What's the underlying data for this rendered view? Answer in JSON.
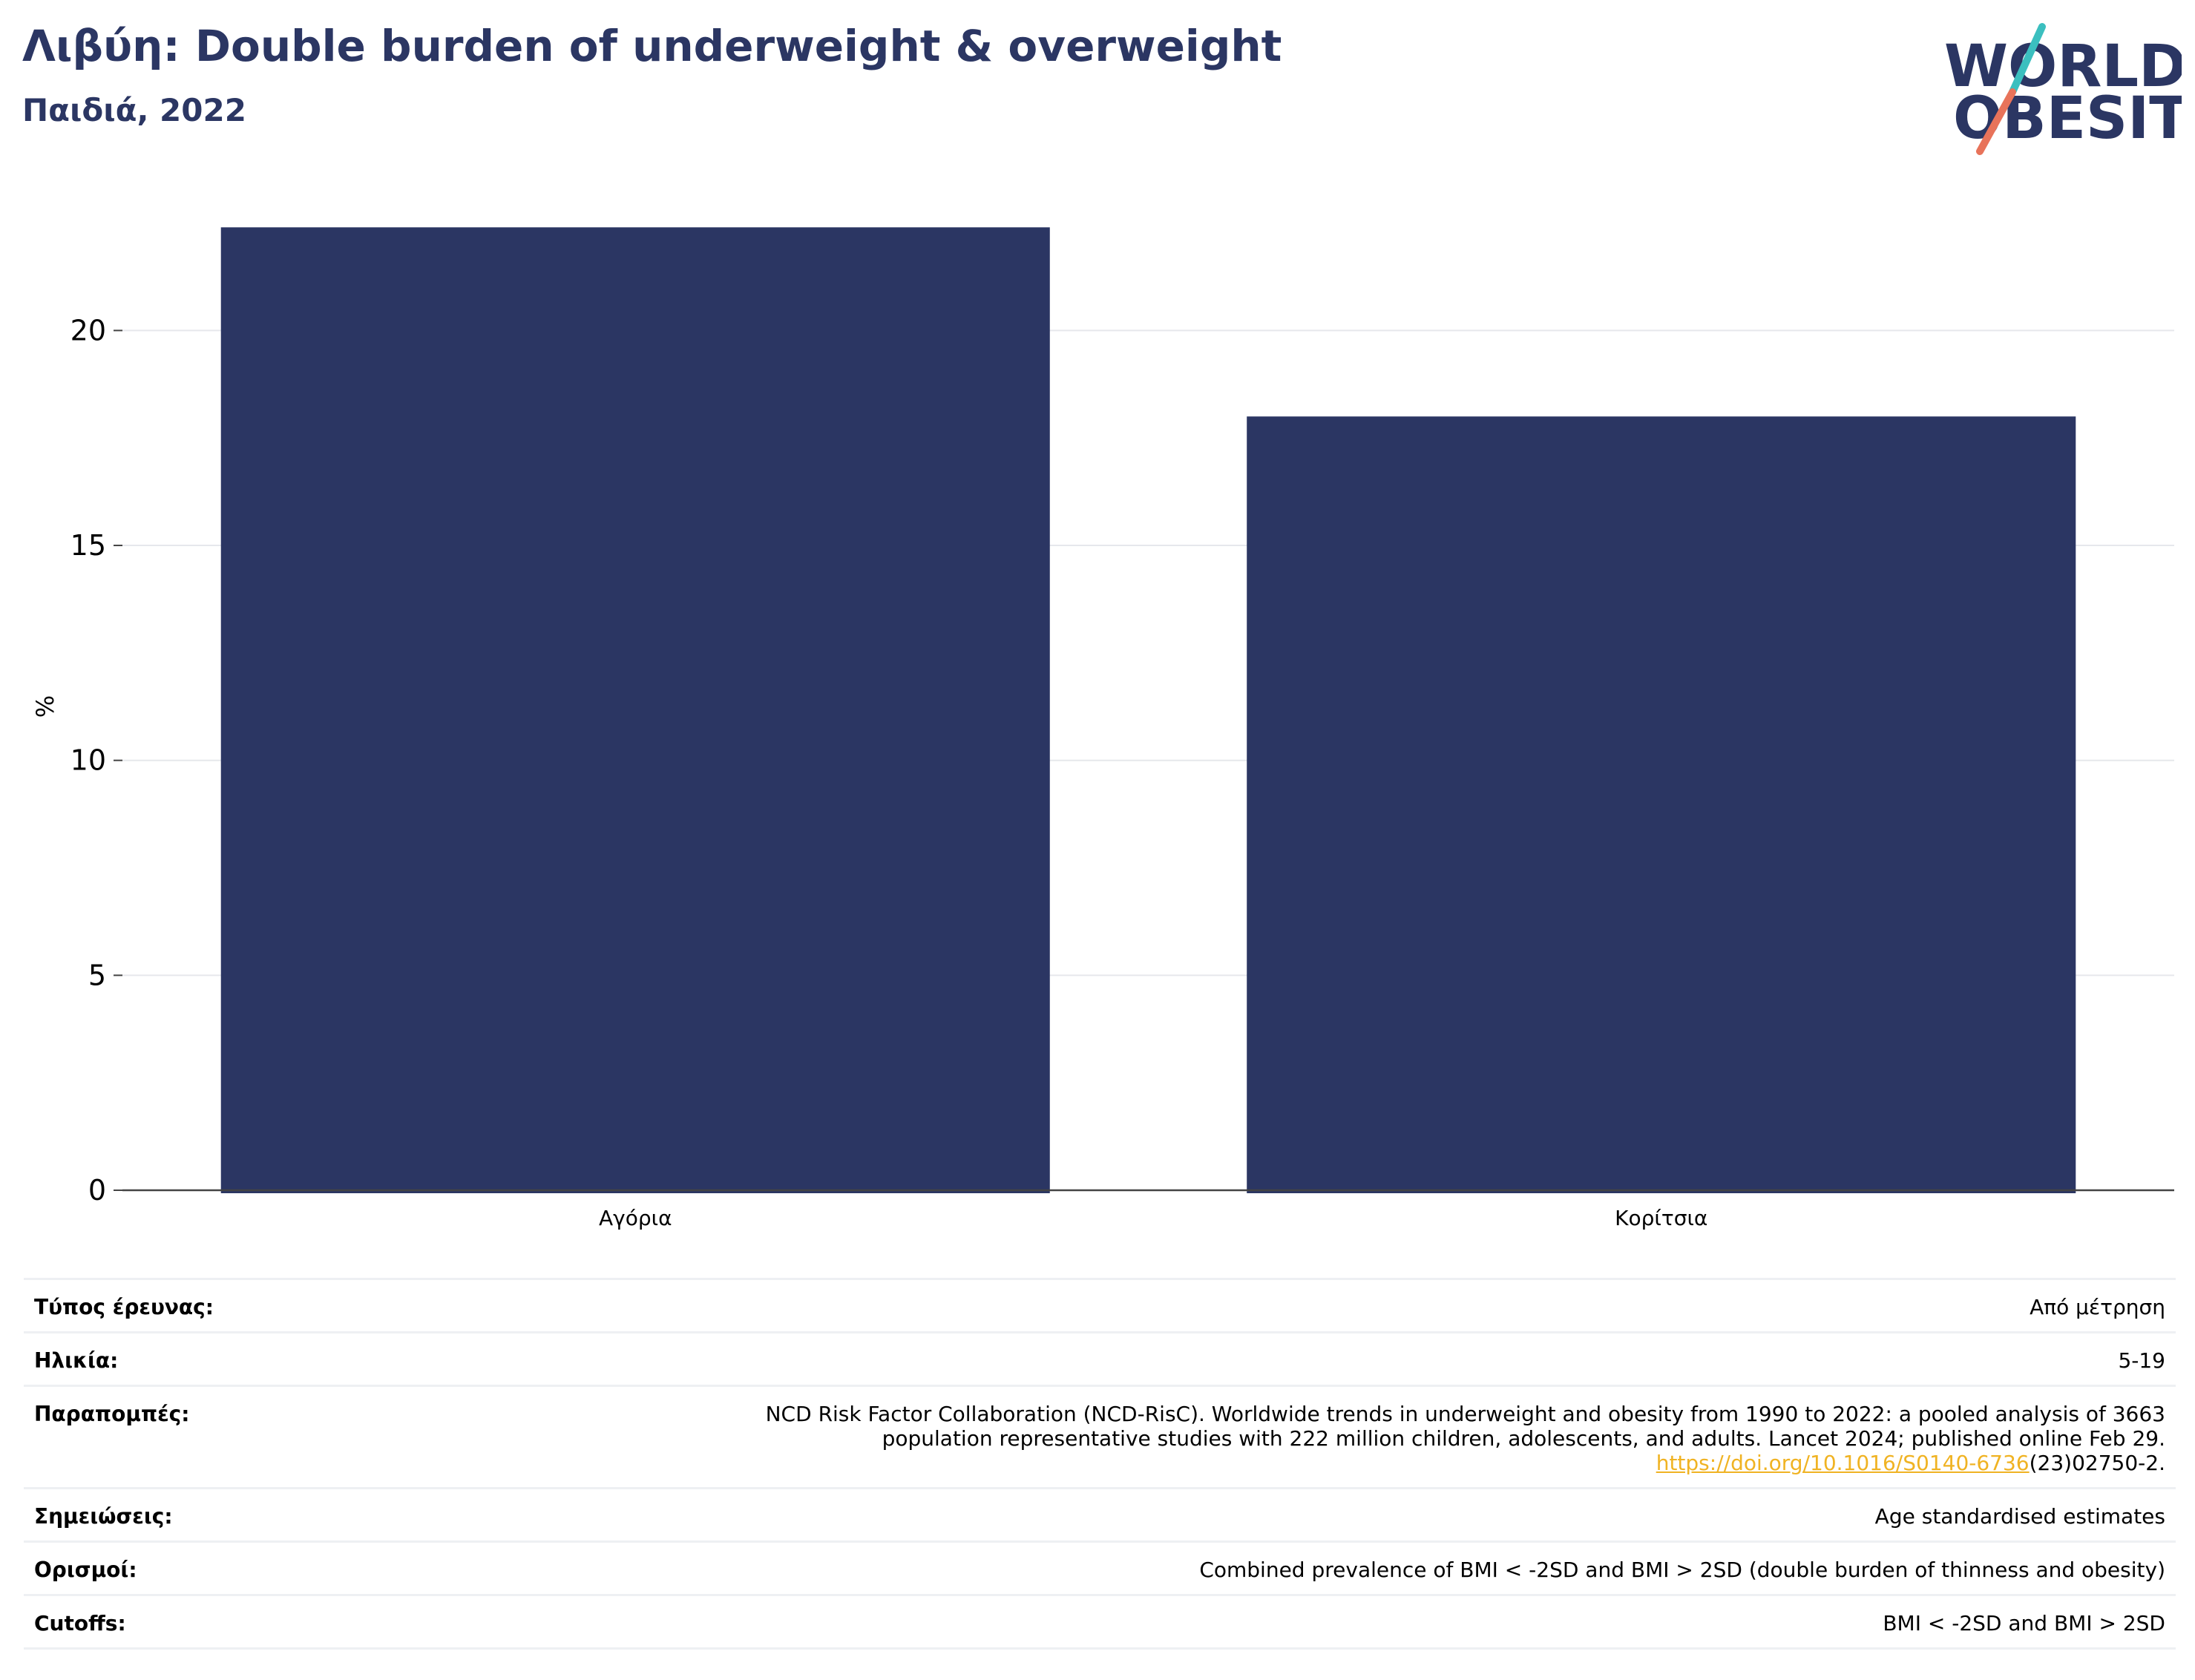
{
  "header": {
    "title": "Λιβύη: Double burden of underweight & overweight",
    "subtitle": "Παιδιά, 2022"
  },
  "logo": {
    "line1": "WORLD",
    "line2": "OBESITY",
    "colors": {
      "text": "#2b3663",
      "slash_top": "#3bbfbf",
      "slash_bottom": "#e8735a"
    }
  },
  "chart_data": {
    "type": "bar",
    "categories": [
      "Αγόρια",
      "Κορίτσια"
    ],
    "values": [
      22.4,
      18.0
    ],
    "ylabel": "%",
    "xlabel": "",
    "ylim": [
      0,
      23.2
    ],
    "yticks": [
      0,
      5,
      10,
      15,
      20
    ],
    "bar_color": "#2b3663",
    "grid": true
  },
  "info": {
    "survey_type": {
      "label": "Τύπος έρευνας:",
      "value": "Από μέτρηση"
    },
    "age": {
      "label": "Ηλικία:",
      "value": "5-19"
    },
    "references": {
      "label": "Παραπομπές:",
      "line1": "NCD Risk Factor Collaboration (NCD-RisC). Worldwide trends in underweight and obesity from 1990 to 2022: a pooled analysis of 3663",
      "line2": "population representative studies with 222 million children, adolescents, and adults. Lancet 2024; published online Feb 29.",
      "link": "https://doi.org/10.1016/S0140-6736",
      "link_suffix": "(23)02750-2."
    },
    "notes": {
      "label": "Σημειώσεις:",
      "value": "Age standardised estimates"
    },
    "definitions": {
      "label": "Ορισμοί:",
      "value": "Combined prevalence of BMI < -2SD and BMI > 2SD (double burden of thinness and obesity)"
    },
    "cutoffs": {
      "label": "Cutoffs:",
      "value": "BMI < -2SD and BMI > 2SD"
    }
  }
}
